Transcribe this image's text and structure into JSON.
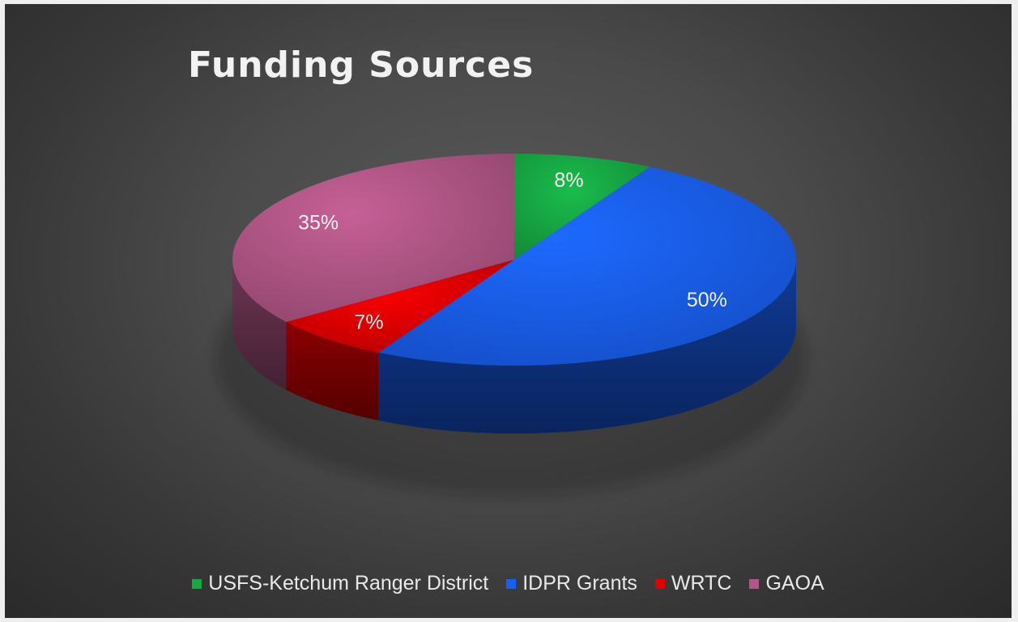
{
  "chart_data": {
    "type": "pie",
    "title": "Funding Sources",
    "slices": [
      {
        "label": "USFS-Ketchum Ranger District",
        "value": 8,
        "display": "8%",
        "color": "#17a844"
      },
      {
        "label": "IDPR Grants",
        "value": 50,
        "display": "50%",
        "color": "#1a5ff4"
      },
      {
        "label": "WRTC",
        "value": 7,
        "display": "7%",
        "color": "#e00000"
      },
      {
        "label": "GAOA",
        "value": 35,
        "display": "35%",
        "color": "#b15686"
      }
    ],
    "legend_position": "bottom",
    "style": "3d"
  }
}
